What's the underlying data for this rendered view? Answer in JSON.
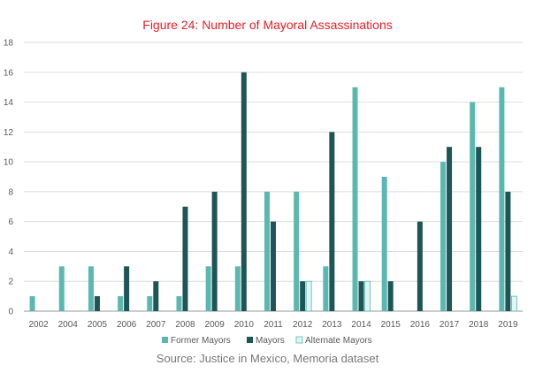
{
  "chart_data": {
    "type": "bar",
    "title": "Figure 24: Number of Mayoral Assassinations",
    "categories": [
      "2002",
      "2004",
      "2005",
      "2006",
      "2007",
      "2008",
      "2009",
      "2010",
      "2011",
      "2012",
      "2013",
      "2014",
      "2015",
      "2016",
      "2017",
      "2018",
      "2019"
    ],
    "series": [
      {
        "name": "Former Mayors",
        "color": "#5bb8b0",
        "values": [
          1,
          3,
          3,
          1,
          1,
          1,
          3,
          3,
          8,
          8,
          3,
          15,
          9,
          0,
          10,
          14,
          15
        ]
      },
      {
        "name": "Mayors",
        "color": "#1e5557",
        "values": [
          0,
          0,
          1,
          3,
          2,
          7,
          8,
          16,
          6,
          2,
          12,
          2,
          2,
          6,
          11,
          11,
          8
        ]
      },
      {
        "name": "Alternate Mayors",
        "color": "#dff5f5",
        "values": [
          0,
          0,
          0,
          0,
          0,
          0,
          0,
          0,
          0,
          2,
          0,
          2,
          0,
          0,
          0,
          0,
          1
        ]
      }
    ],
    "ylim": [
      0,
      18
    ],
    "yticks": [
      0,
      2,
      4,
      6,
      8,
      10,
      12,
      14,
      16,
      18
    ],
    "xlabel": "",
    "ylabel": "",
    "legend": "bottom",
    "source": "Source: Justice in Mexico, Memoria dataset"
  }
}
